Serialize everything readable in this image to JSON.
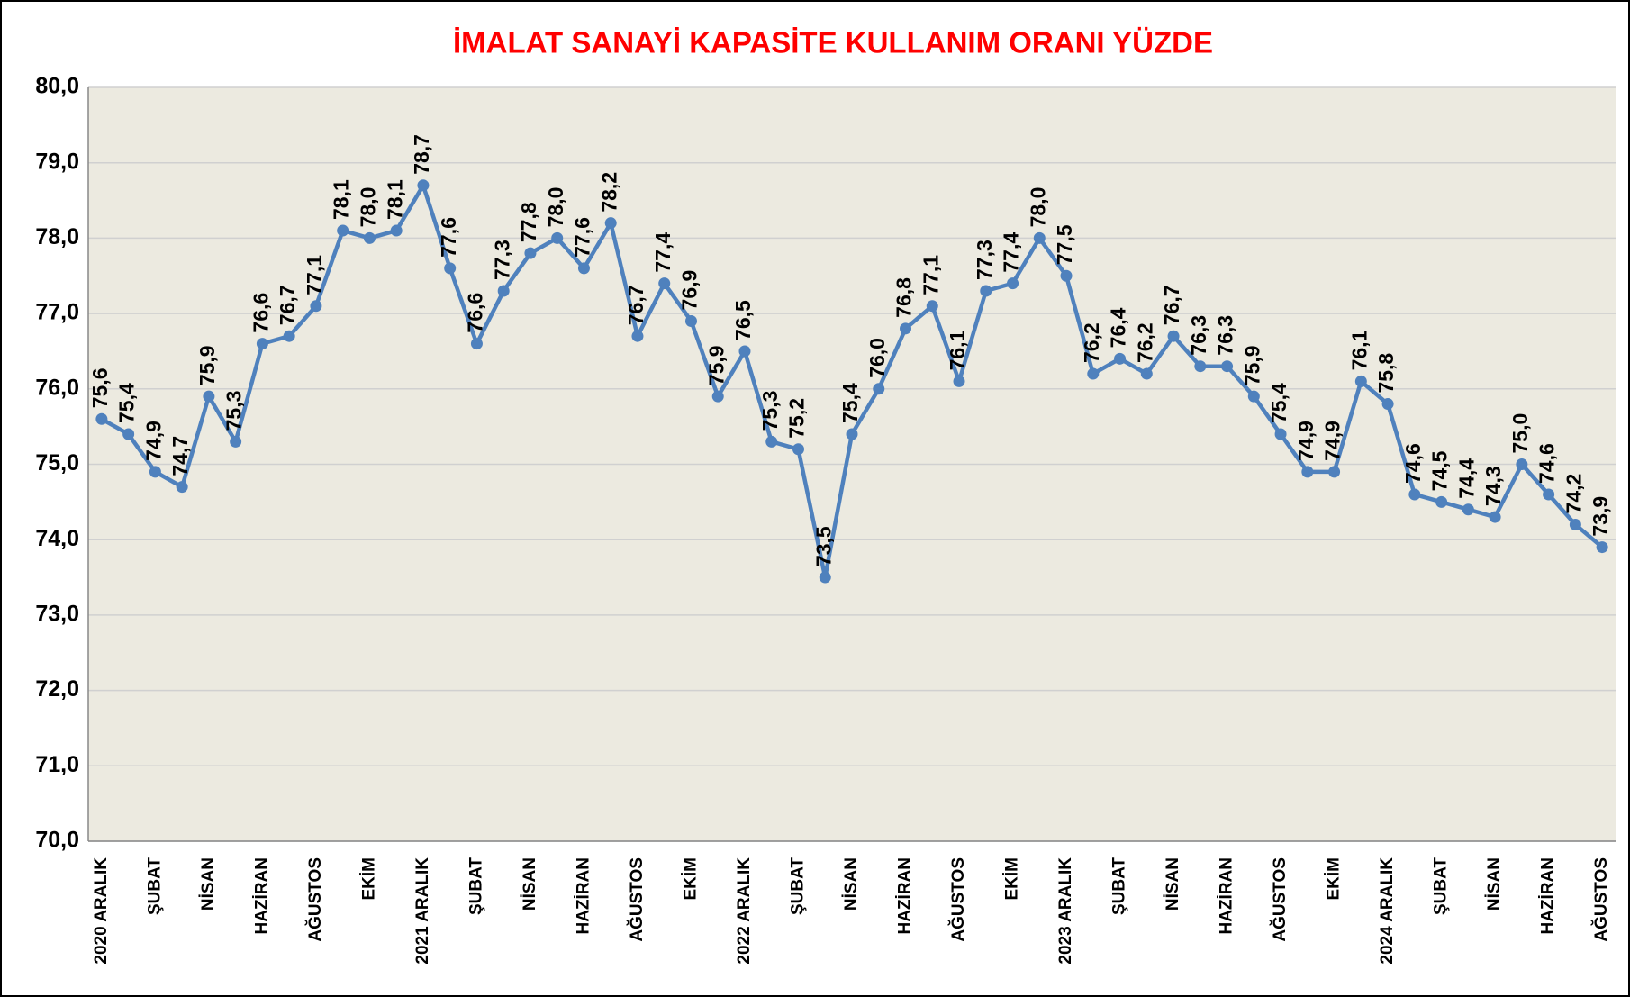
{
  "chart_data": {
    "type": "line",
    "title": "İMALAT SANAYİ KAPASİTE KULLANIM ORANI YÜZDE",
    "categories": [
      "2020 ARALIK",
      null,
      "ŞUBAT",
      null,
      "NİSAN",
      null,
      "HAZİRAN",
      null,
      "AĞUSTOS",
      null,
      "EKİM",
      null,
      "2021 ARALIK",
      null,
      "ŞUBAT",
      null,
      "NİSAN",
      null,
      "HAZİRAN",
      null,
      "AĞUSTOS",
      null,
      "EKİM",
      null,
      "2022 ARALIK",
      null,
      "ŞUBAT",
      null,
      "NİSAN",
      null,
      "HAZİRAN",
      null,
      "AĞUSTOS",
      null,
      "EKİM",
      null,
      "2023 ARALIK",
      null,
      "ŞUBAT",
      null,
      "NİSAN",
      null,
      "HAZİRAN",
      null,
      "AĞUSTOS",
      null,
      "EKİM",
      null,
      "2024 ARALIK",
      null,
      "ŞUBAT",
      null,
      "NİSAN",
      null,
      "HAZİRAN",
      null,
      "AĞUSTOS"
    ],
    "series": [
      {
        "color": "#4f81bd",
        "values": [
          75.6,
          75.4,
          74.9,
          74.7,
          75.9,
          75.3,
          76.6,
          76.7,
          77.1,
          78.1,
          78.0,
          78.1,
          78.7,
          77.6,
          76.6,
          77.3,
          77.8,
          78.0,
          77.6,
          78.2,
          76.7,
          77.4,
          76.9,
          75.9,
          76.5,
          75.3,
          75.2,
          73.5,
          75.4,
          76.0,
          76.8,
          77.1,
          76.1,
          77.3,
          77.4,
          78.0,
          77.5,
          76.2,
          76.4,
          76.2,
          76.7,
          76.3,
          76.3,
          75.9,
          75.4,
          74.9,
          74.9,
          76.1,
          75.8,
          74.6,
          74.5,
          74.4,
          74.3,
          75.0,
          74.6,
          74.2,
          73.9
        ],
        "value_labels": [
          "75,6",
          "75,4",
          "74,9",
          "74,7",
          "75,9",
          "75,3",
          "76,6",
          "76,7",
          "77,1",
          "78,1",
          "78,0",
          "78,1",
          "78,7",
          "77,6",
          "76,6",
          "77,3",
          "77,8",
          "78,0",
          "77,6",
          "78,2",
          "76,7",
          "77,4",
          "76,9",
          "75,9",
          "76,5",
          "75,3",
          "75,2",
          "73,5",
          "75,4",
          "76,0",
          "76,8",
          "77,1",
          "76,1",
          "77,3",
          "77,4",
          "78,0",
          "77,5",
          "76,2",
          "76,4",
          "76,2",
          "76,7",
          "76,3",
          "76,3",
          "75,9",
          "75,4",
          "74,9",
          "74,9",
          "76,1",
          "75,8",
          "74,6",
          "74,5",
          "74,4",
          "74,3",
          "75,0",
          "74,6",
          "74,2",
          "73,9"
        ]
      }
    ],
    "ylim": [
      70,
      80
    ],
    "yticks": [
      {
        "value": 70,
        "label": "70,0"
      },
      {
        "value": 71,
        "label": "71,0"
      },
      {
        "value": 72,
        "label": "72,0"
      },
      {
        "value": 73,
        "label": "73,0"
      },
      {
        "value": 74,
        "label": "74,0"
      },
      {
        "value": 75,
        "label": "75,0"
      },
      {
        "value": 76,
        "label": "76,0"
      },
      {
        "value": 77,
        "label": "77,0"
      },
      {
        "value": 78,
        "label": "78,0"
      },
      {
        "value": 79,
        "label": "79,0"
      },
      {
        "value": 80,
        "label": "80,0"
      }
    ],
    "grid": true
  }
}
